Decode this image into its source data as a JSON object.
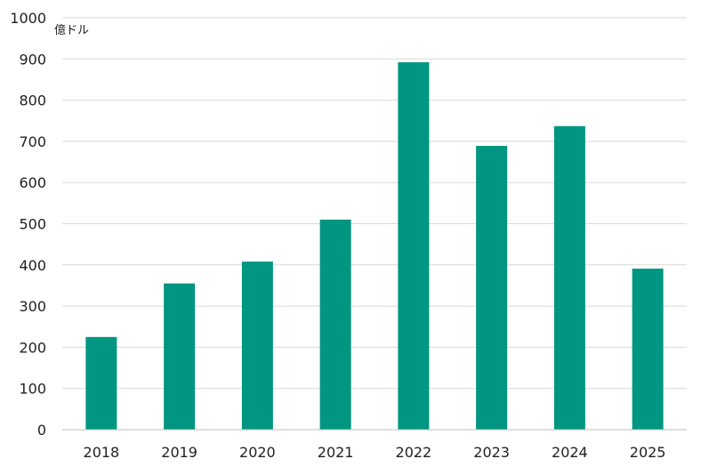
{
  "chart_data": {
    "type": "bar",
    "unit_label": "億ドル",
    "categories": [
      "2018",
      "2019",
      "2020",
      "2021",
      "2022",
      "2023",
      "2024",
      "2025"
    ],
    "series": [
      {
        "values": [
          225,
          355,
          408,
          510,
          892,
          689,
          737,
          391
        ]
      }
    ],
    "ylim": [
      0,
      1000
    ],
    "yticks": [
      0,
      100,
      200,
      300,
      400,
      500,
      600,
      700,
      800,
      900,
      1000
    ],
    "grid": true,
    "legend": "none",
    "bar_color": "#009681",
    "grid_color": "#d9d9d9",
    "axis_color": "#bfbfbf"
  }
}
